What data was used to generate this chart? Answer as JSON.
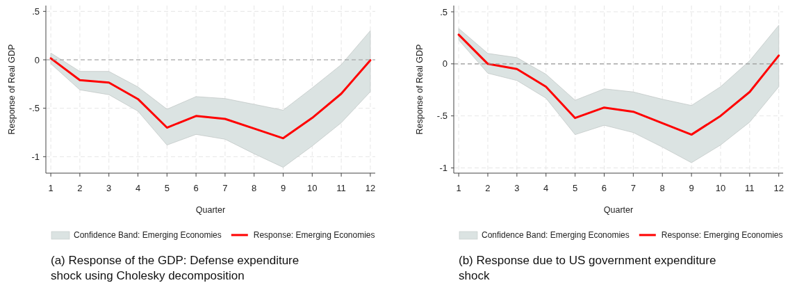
{
  "chart_data": [
    {
      "type": "line",
      "xlabel": "Quarter",
      "ylabel": "Response of Real GDP",
      "x": [
        1,
        2,
        3,
        4,
        5,
        6,
        7,
        8,
        9,
        10,
        11,
        12
      ],
      "xlim": [
        0.83,
        12.17
      ],
      "xticks": [
        1,
        2,
        3,
        4,
        5,
        6,
        7,
        8,
        9,
        10,
        11,
        12
      ],
      "ylim": [
        -1.17,
        0.56
      ],
      "yticks": [
        {
          "value": 0.5,
          "label": ".5"
        },
        0,
        {
          "value": -0.5,
          "label": "-.5"
        },
        {
          "value": -1,
          "label": "-1"
        }
      ],
      "grid": true,
      "legend": "bottom",
      "ref_lines": [
        {
          "axis": "y",
          "value": 0,
          "color": "#999999",
          "line_style": "dashed"
        }
      ],
      "annotations": [
        "(a) Response of the GDP: Defense expenditure shock using Cholesky decomposition"
      ],
      "series": [
        {
          "name": "Confidence Band: Emerging Economies",
          "type": "area",
          "color": "#dbe3e2",
          "values": [
            null,
            null,
            null,
            null,
            null,
            null,
            null,
            null,
            null,
            null,
            null,
            null
          ],
          "lower": [
            -0.04,
            -0.31,
            -0.36,
            -0.53,
            -0.88,
            -0.77,
            -0.82,
            -0.97,
            -1.11,
            -0.89,
            -0.65,
            -0.33
          ],
          "upper": [
            0.07,
            -0.12,
            -0.12,
            -0.28,
            -0.51,
            -0.38,
            -0.4,
            -0.46,
            -0.52,
            -0.29,
            -0.05,
            0.3
          ]
        },
        {
          "name": "Response: Emerging Economies",
          "type": "line",
          "color": "#ff0000",
          "values": [
            0.015,
            -0.21,
            -0.235,
            -0.405,
            -0.7,
            -0.58,
            -0.61,
            -0.71,
            -0.81,
            -0.6,
            -0.35,
            -0.005
          ]
        }
      ]
    },
    {
      "type": "line",
      "xlabel": "Quarter",
      "ylabel": "Response of Real GDP",
      "x": [
        1,
        2,
        3,
        4,
        5,
        6,
        7,
        8,
        9,
        10,
        11,
        12
      ],
      "xlim": [
        0.83,
        12.15
      ],
      "xticks": [
        1,
        2,
        3,
        4,
        5,
        6,
        7,
        8,
        9,
        10,
        11,
        12
      ],
      "ylim": [
        -1.05,
        0.56
      ],
      "yticks": [
        {
          "value": 0.5,
          "label": ".5"
        },
        0,
        {
          "value": -0.5,
          "label": "-.5"
        },
        {
          "value": -1,
          "label": "-1"
        }
      ],
      "grid": true,
      "legend": "bottom",
      "ref_lines": [
        {
          "axis": "y",
          "value": 0,
          "color": "#999999",
          "line_style": "dashed"
        }
      ],
      "annotations": [
        "(b) Response due to US government expenditure shock"
      ],
      "series": [
        {
          "name": "Confidence Band: Emerging Economies",
          "type": "area",
          "color": "#dbe3e2",
          "values": [
            null,
            null,
            null,
            null,
            null,
            null,
            null,
            null,
            null,
            null,
            null,
            null
          ],
          "lower": [
            0.23,
            -0.09,
            -0.16,
            -0.33,
            -0.68,
            -0.59,
            -0.66,
            -0.8,
            -0.95,
            -0.78,
            -0.56,
            -0.22
          ],
          "upper": [
            0.34,
            0.1,
            0.06,
            -0.1,
            -0.35,
            -0.24,
            -0.27,
            -0.34,
            -0.4,
            -0.22,
            0.03,
            0.37
          ]
        },
        {
          "name": "Response: Emerging Economies",
          "type": "line",
          "color": "#ff0000",
          "values": [
            0.28,
            0,
            -0.05,
            -0.22,
            -0.52,
            -0.42,
            -0.46,
            -0.57,
            -0.68,
            -0.5,
            -0.27,
            0.08
          ]
        }
      ]
    }
  ]
}
